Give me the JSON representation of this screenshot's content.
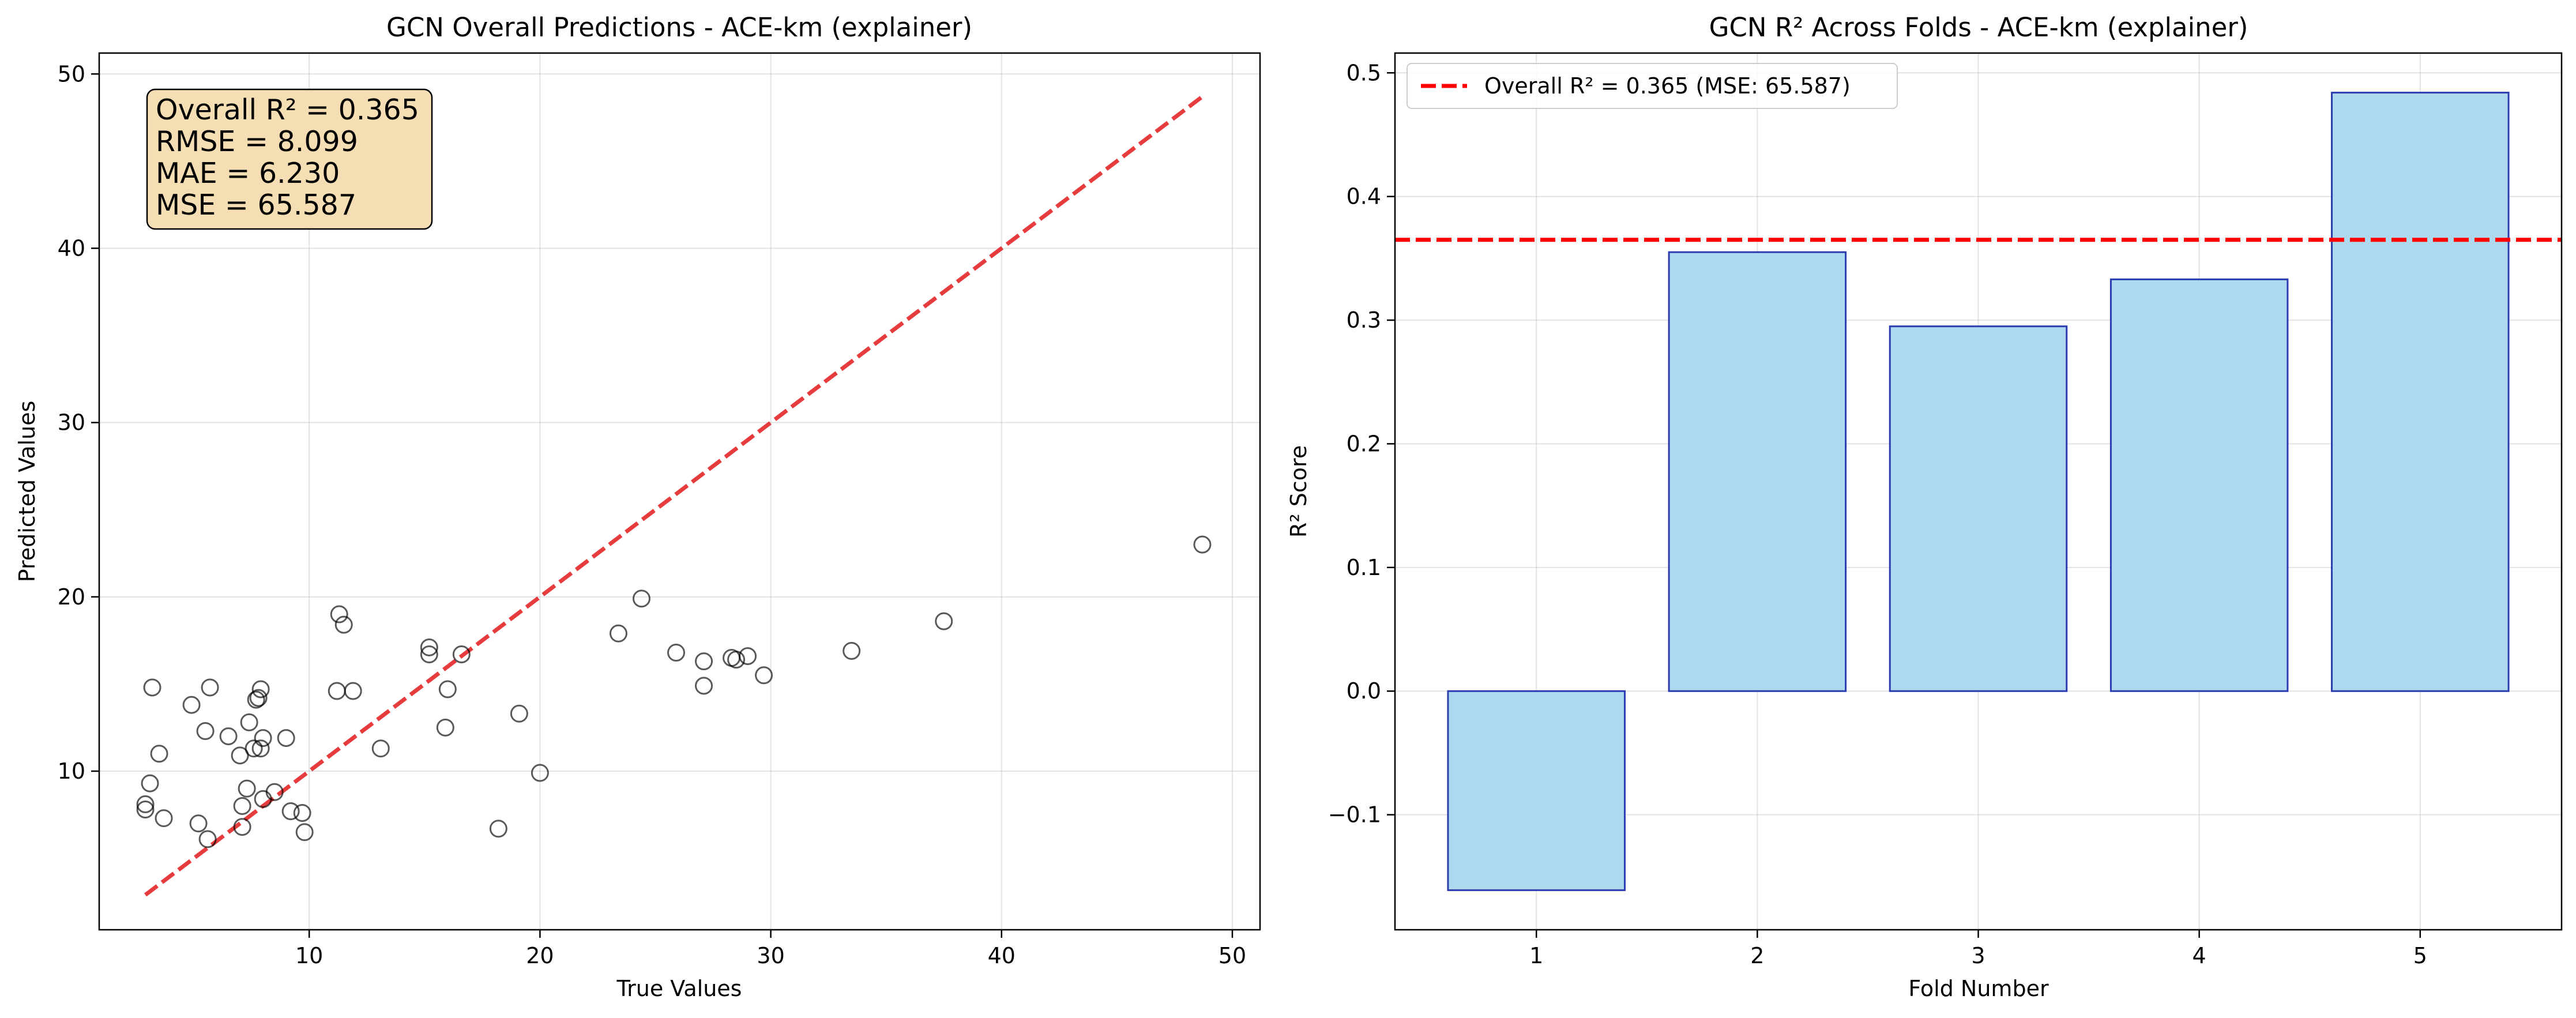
{
  "chart_data": [
    {
      "type": "scatter",
      "title": "GCN Overall Predictions - ACE-km (explainer)",
      "xlabel": "True Values",
      "ylabel": "Predicted Values",
      "xlim": [
        0.9,
        51.2
      ],
      "ylim": [
        0.9,
        51.2
      ],
      "xticks": [
        10,
        20,
        30,
        40,
        50
      ],
      "yticks": [
        10,
        20,
        30,
        40,
        50
      ],
      "grid": true,
      "stats_box": {
        "placement": "top-left",
        "lines": [
          "Overall R² = 0.365",
          "RMSE = 8.099",
          "MAE = 6.230",
          "MSE = 65.587"
        ],
        "fill": "#f5deb3"
      },
      "reference_line": {
        "x": [
          2.9,
          48.7
        ],
        "y": [
          2.9,
          48.7
        ],
        "color": "#e31a1c",
        "style": "dashed"
      },
      "marker": {
        "edge_color": "#000000",
        "fill": "none",
        "alpha": 0.65
      },
      "points": [
        [
          2.9,
          8.1
        ],
        [
          2.9,
          7.8
        ],
        [
          3.1,
          9.3
        ],
        [
          3.2,
          14.8
        ],
        [
          3.5,
          11.0
        ],
        [
          3.7,
          7.3
        ],
        [
          4.9,
          13.8
        ],
        [
          5.2,
          7.0
        ],
        [
          5.5,
          12.3
        ],
        [
          5.6,
          6.1
        ],
        [
          5.7,
          14.8
        ],
        [
          6.5,
          12.0
        ],
        [
          7.0,
          10.9
        ],
        [
          7.1,
          6.8
        ],
        [
          7.1,
          8.0
        ],
        [
          7.3,
          9.0
        ],
        [
          7.4,
          12.8
        ],
        [
          7.6,
          11.3
        ],
        [
          7.7,
          14.1
        ],
        [
          7.8,
          14.2
        ],
        [
          7.9,
          14.7
        ],
        [
          7.9,
          11.3
        ],
        [
          8.0,
          8.4
        ],
        [
          8.0,
          11.9
        ],
        [
          8.5,
          8.8
        ],
        [
          9.0,
          11.9
        ],
        [
          9.2,
          7.7
        ],
        [
          9.7,
          7.6
        ],
        [
          9.8,
          6.5
        ],
        [
          11.2,
          14.6
        ],
        [
          11.3,
          19.0
        ],
        [
          11.5,
          18.4
        ],
        [
          11.9,
          14.6
        ],
        [
          13.1,
          11.3
        ],
        [
          15.2,
          17.1
        ],
        [
          15.2,
          16.7
        ],
        [
          15.9,
          12.5
        ],
        [
          16.0,
          14.7
        ],
        [
          16.6,
          16.7
        ],
        [
          18.2,
          6.7
        ],
        [
          19.1,
          13.3
        ],
        [
          20.0,
          9.9
        ],
        [
          23.4,
          17.9
        ],
        [
          24.4,
          19.9
        ],
        [
          25.9,
          16.8
        ],
        [
          27.1,
          16.3
        ],
        [
          27.1,
          14.9
        ],
        [
          28.3,
          16.5
        ],
        [
          28.5,
          16.4
        ],
        [
          29.0,
          16.6
        ],
        [
          29.7,
          15.5
        ],
        [
          33.5,
          16.9
        ],
        [
          37.5,
          18.6
        ],
        [
          48.7,
          23.0
        ]
      ]
    },
    {
      "type": "bar",
      "title": "GCN R² Across Folds - ACE-km (explainer)",
      "xlabel": "Fold Number",
      "ylabel": "R² Score",
      "categories": [
        "1",
        "2",
        "3",
        "4",
        "5"
      ],
      "values": [
        -0.161,
        0.355,
        0.295,
        0.333,
        0.484
      ],
      "ylim": [
        -0.193,
        0.516
      ],
      "yticks": [
        -0.1,
        0.0,
        0.1,
        0.2,
        0.3,
        0.4,
        0.5
      ],
      "ytick_labels": [
        "−0.1",
        "0.0",
        "0.1",
        "0.2",
        "0.3",
        "0.4",
        "0.5"
      ],
      "grid": true,
      "bar_fill": "#add8ed",
      "bar_edge": "#2a3cb0",
      "reference_line": {
        "y": 0.365,
        "color": "#ff0000",
        "style": "dashed"
      },
      "legend": {
        "placement": "top-left",
        "entries": [
          "Overall R² = 0.365 (MSE: 65.587)"
        ]
      }
    }
  ]
}
